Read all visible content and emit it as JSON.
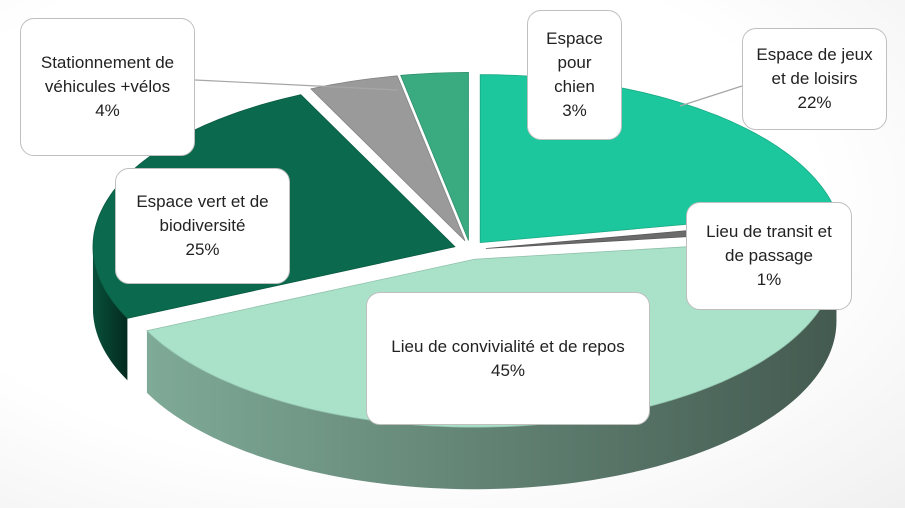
{
  "chart_data": {
    "type": "pie3d",
    "categories": [
      "Espace de jeux et de loisirs",
      "Lieu de transit et de passage",
      "Lieu de convivialité et de repos",
      "Espace vert et de biodiversité",
      "Stationnement de véhicules +vélos",
      "Espace pour chien"
    ],
    "values": [
      22,
      1,
      45,
      25,
      4,
      3
    ],
    "value_labels": [
      "22%",
      "1%",
      "45%",
      "25%",
      "4%",
      "3%"
    ],
    "colors": [
      "#1dc79d",
      "#6b6b6b",
      "#a9e2c9",
      "#0b6a4d",
      "#9a9a9a",
      "#3aab80"
    ]
  }
}
